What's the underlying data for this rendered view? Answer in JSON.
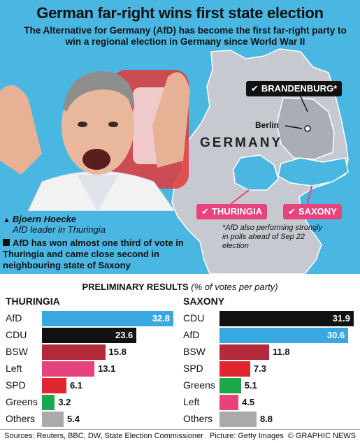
{
  "header": {
    "title": "German far-right wins first state election",
    "subtitle": "The Alternative for Germany (AfD) has become the first far-right party to win a regional election in Germany since World War II"
  },
  "caption": {
    "name": "Bjoern Hoecke",
    "role": "AfD leader in Thuringia",
    "body": "AfD has won almost one third of vote in Thuringia and came close second in neighbouring state of Saxony"
  },
  "map": {
    "country": "GERMANY",
    "city": "Berlin",
    "brandenburg": "BRANDENBURG*",
    "thuringia": "THURINGIA",
    "saxony": "SAXONY",
    "note": "*AfD also performing strongly in polls ahead of Sep 22 election"
  },
  "results": {
    "heading": "PRELIMINARY RESULTS",
    "unit": "(% of votes per party)"
  },
  "chart_data": [
    {
      "type": "bar",
      "title": "THURINGIA",
      "categories": [
        "AfD",
        "CDU",
        "BSW",
        "Left",
        "SPD",
        "Greens",
        "Others"
      ],
      "values": [
        32.8,
        23.6,
        15.8,
        13.1,
        6.1,
        3.2,
        5.4
      ],
      "colors": [
        "#3aa8e0",
        "#111111",
        "#b52a3a",
        "#e8427c",
        "#e2262f",
        "#1aa84a",
        "#aaaaaa"
      ],
      "xlim": [
        0,
        32.8
      ]
    },
    {
      "type": "bar",
      "title": "SAXONY",
      "categories": [
        "CDU",
        "AfD",
        "BSW",
        "SPD",
        "Greens",
        "Left",
        "Others"
      ],
      "values": [
        31.9,
        30.6,
        11.8,
        7.3,
        5.1,
        4.5,
        8.8
      ],
      "colors": [
        "#111111",
        "#3aa8e0",
        "#b52a3a",
        "#e2262f",
        "#1aa84a",
        "#e8427c",
        "#aaaaaa"
      ],
      "xlim": [
        0,
        31.9
      ]
    }
  ],
  "footer": {
    "sources": "Sources: Reuters, BBC, DW, State Election Commissioner",
    "picture": "Picture: Getty Images",
    "brand": "© GRAPHIC NEWS"
  }
}
